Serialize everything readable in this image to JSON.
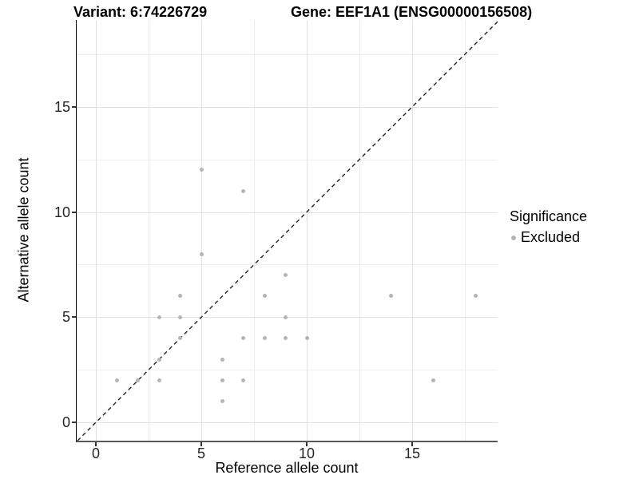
{
  "chart_data": {
    "type": "scatter",
    "titles": {
      "variant": "Variant: 6:74226729",
      "gene": "Gene: EEF1A1 (ENSG00000156508)"
    },
    "xlabel": "Reference allele count",
    "ylabel": "Alternative allele count",
    "xlim": [
      -0.91,
      19.05
    ],
    "ylim": [
      -0.87,
      19.13
    ],
    "x_ticks": [
      {
        "value": 0,
        "label": "0"
      },
      {
        "value": 5,
        "label": "5"
      },
      {
        "value": 10,
        "label": "10"
      },
      {
        "value": 15,
        "label": "15"
      }
    ],
    "y_ticks": [
      {
        "value": 0,
        "label": "0"
      },
      {
        "value": 5,
        "label": "5"
      },
      {
        "value": 10,
        "label": "10"
      },
      {
        "value": 15,
        "label": "15"
      }
    ],
    "x_minor_gridlines": [
      2.5,
      7.5,
      12.5,
      17.5
    ],
    "y_minor_gridlines": [
      2.5,
      7.5,
      12.5,
      17.5
    ],
    "grid": true,
    "identity_line": {
      "equation": "y = x",
      "style": "dashed"
    },
    "points": [
      [
        1,
        2
      ],
      [
        2,
        2
      ],
      [
        3,
        2
      ],
      [
        3,
        3
      ],
      [
        3,
        5
      ],
      [
        4,
        4
      ],
      [
        4,
        5
      ],
      [
        4,
        6
      ],
      [
        5,
        8
      ],
      [
        5,
        12
      ],
      [
        6,
        1
      ],
      [
        6,
        2
      ],
      [
        6,
        3
      ],
      [
        7,
        2
      ],
      [
        7,
        4
      ],
      [
        7,
        11
      ],
      [
        8,
        4
      ],
      [
        8,
        6
      ],
      [
        9,
        4
      ],
      [
        9,
        5
      ],
      [
        9,
        7
      ],
      [
        10,
        4
      ],
      [
        14,
        6
      ],
      [
        16,
        2
      ],
      [
        18,
        6
      ]
    ],
    "legend": {
      "position": "right",
      "title": "Significance",
      "items": [
        {
          "label": "Excluded",
          "color": "#b3b3b3"
        }
      ]
    },
    "colors": {
      "point": "#b5b5b5",
      "grid_major": "#e2e2e2",
      "grid_minor": "#efefef",
      "axis_line_left": "#000000",
      "axis_line_bottom": "#595959",
      "identity_line": "#222222",
      "tick_text": "#262626"
    }
  }
}
